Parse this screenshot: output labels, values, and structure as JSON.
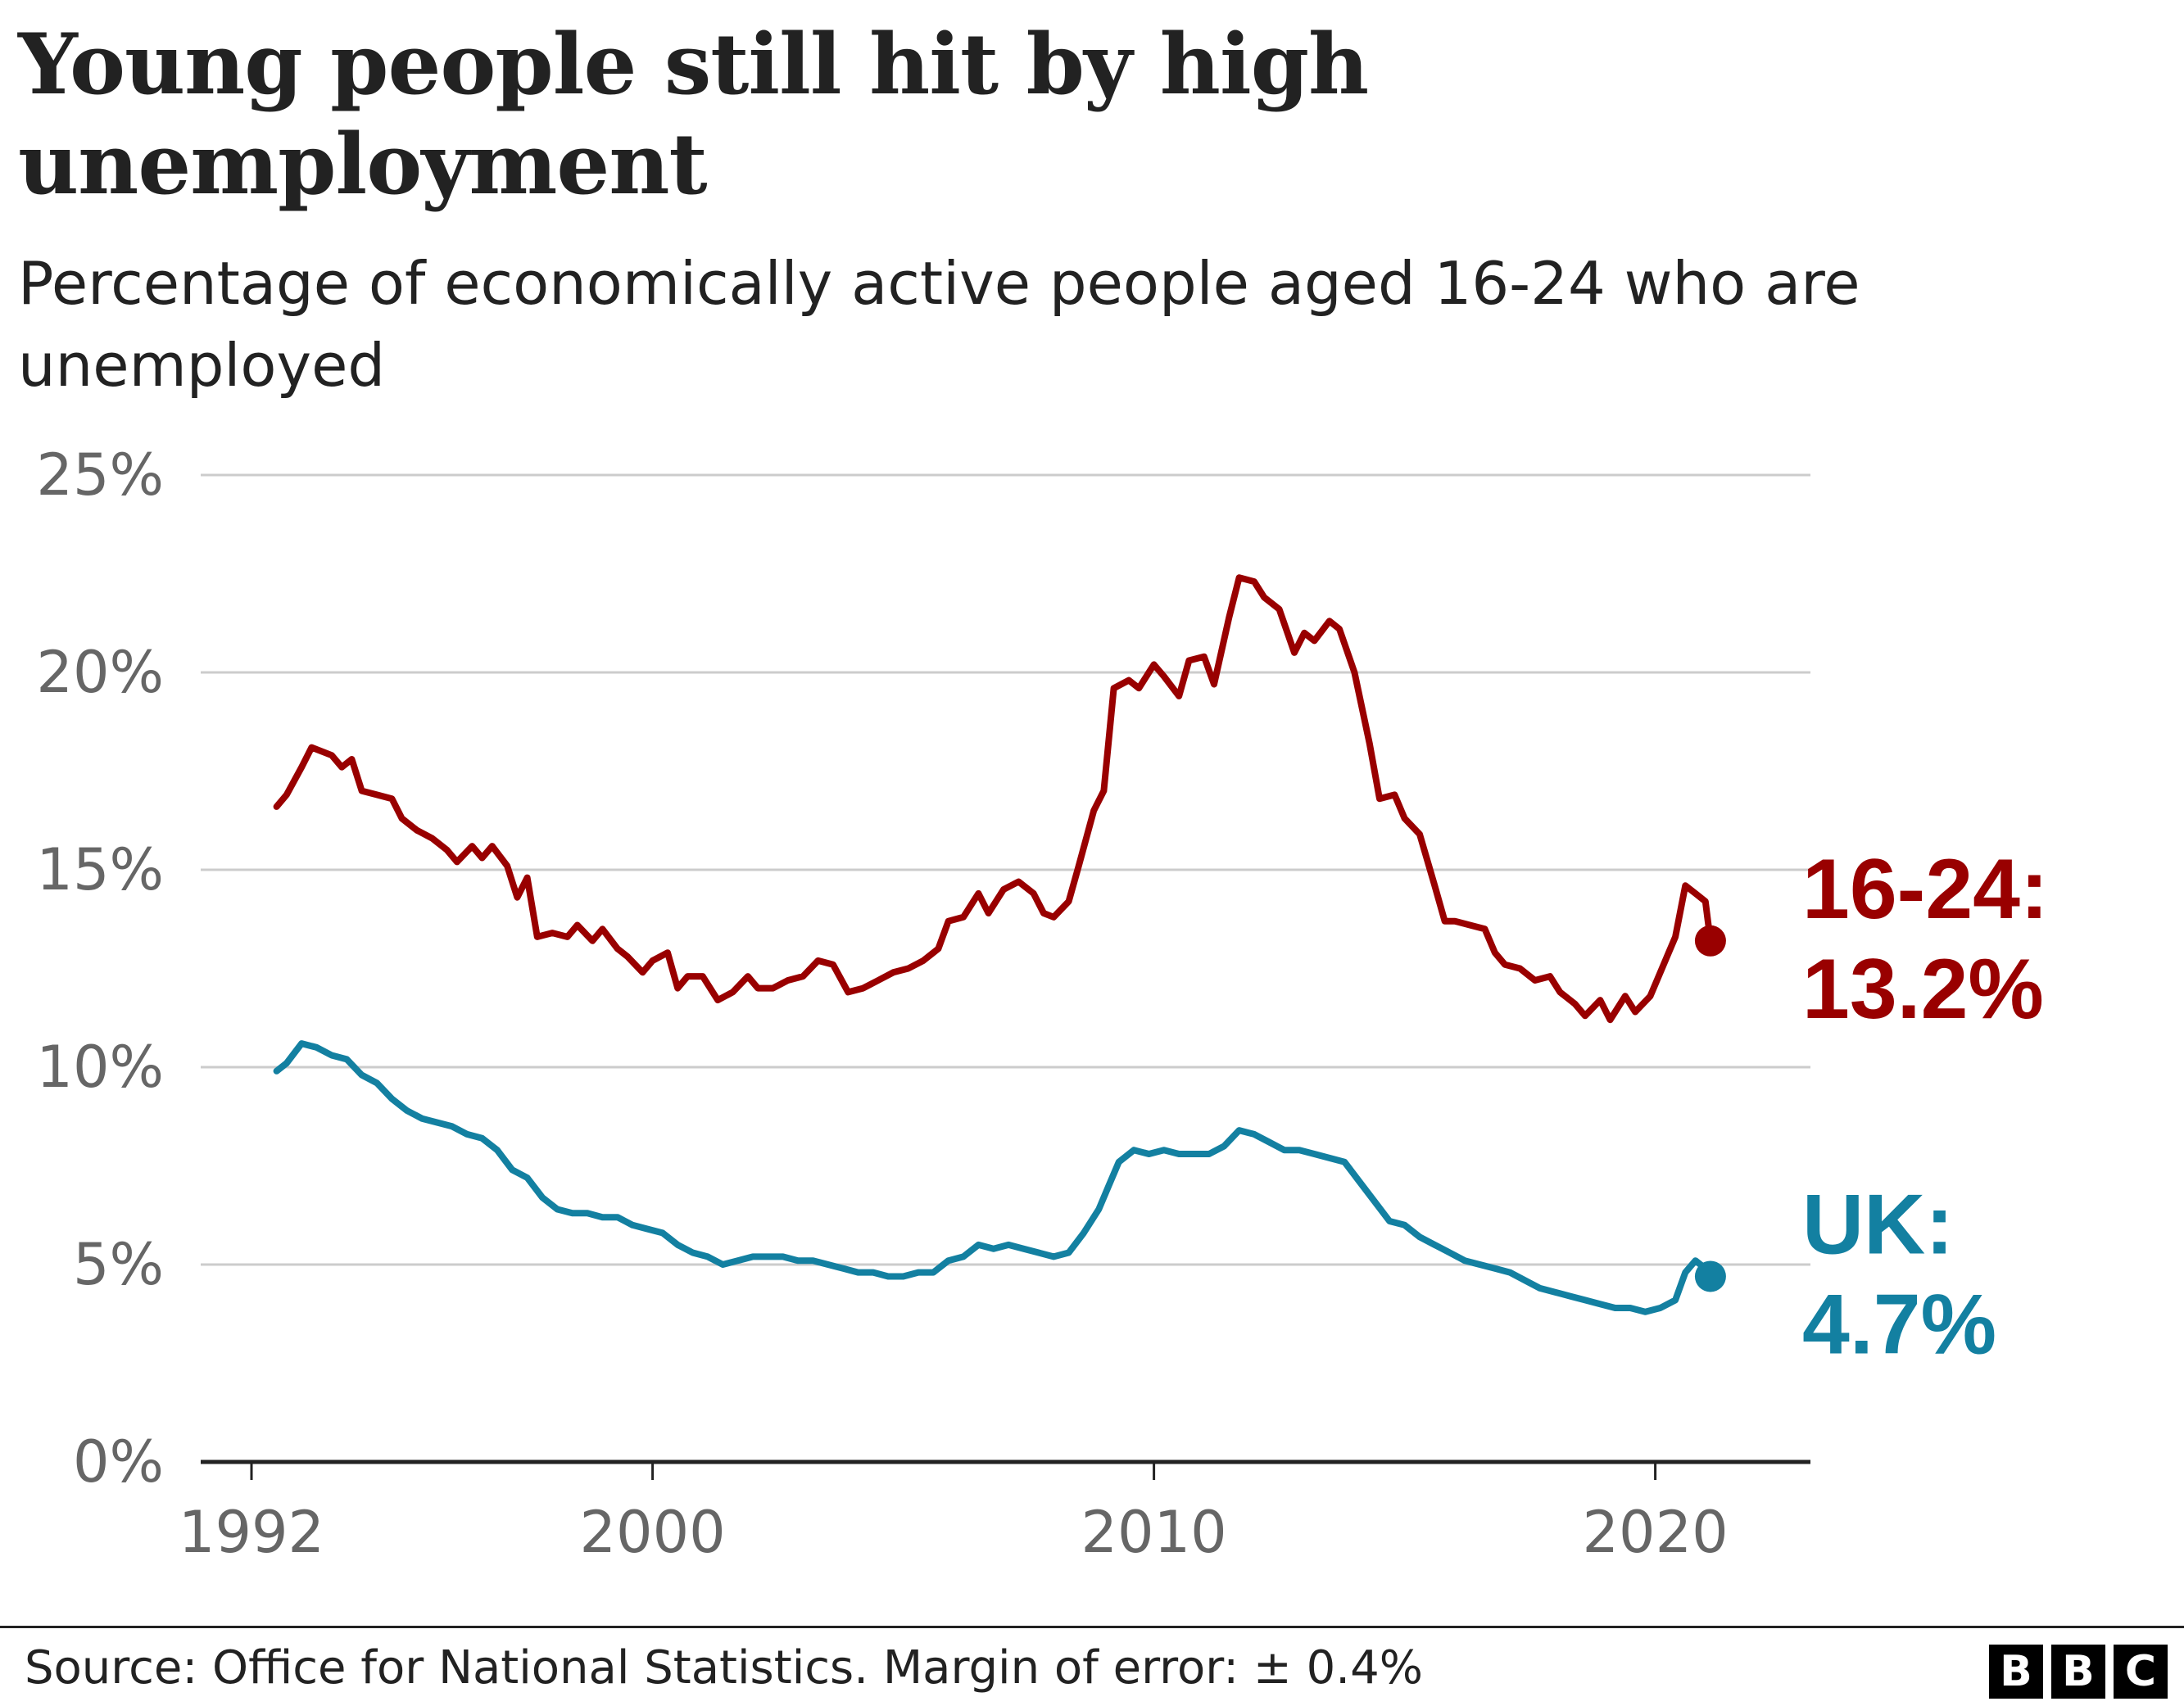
{
  "title": "Young people still hit by high unemployment",
  "subtitle": "Percentage of economically active people aged 16-24 who are unemployed",
  "source": "Source: Office for National Statistics. Margin of error: ± 0.4%",
  "logo": [
    "B",
    "B",
    "C"
  ],
  "chart_data": {
    "type": "line",
    "title": "Young people still hit by high unemployment",
    "subtitle": "Percentage of economically active people aged 16-24 who are unemployed",
    "xlabel": "",
    "ylabel": "",
    "xlim": [
      1991,
      2023
    ],
    "ylim": [
      0,
      25
    ],
    "x_ticks": [
      1992,
      2000,
      2010,
      2020
    ],
    "y_ticks": [
      0,
      5,
      10,
      15,
      20,
      25
    ],
    "y_tick_labels": [
      "0%",
      "5%",
      "10%",
      "15%",
      "20%",
      "25%"
    ],
    "grid": true,
    "colors": {
      "youth": "#990000",
      "uk": "#1380A1",
      "grid": "#cccccc",
      "axis": "#222222",
      "tick_text": "#666666"
    },
    "series": [
      {
        "name": "16-24",
        "key": "youth",
        "end_label": "16-24:",
        "end_value_label": "13.2%",
        "points": [
          [
            1992.5,
            16.6
          ],
          [
            1992.7,
            16.9
          ],
          [
            1993.0,
            17.6
          ],
          [
            1993.2,
            18.1
          ],
          [
            1993.6,
            17.9
          ],
          [
            1993.8,
            17.6
          ],
          [
            1994.0,
            17.8
          ],
          [
            1994.2,
            17.0
          ],
          [
            1994.5,
            16.9
          ],
          [
            1994.8,
            16.8
          ],
          [
            1995.0,
            16.3
          ],
          [
            1995.3,
            16.0
          ],
          [
            1995.6,
            15.8
          ],
          [
            1995.9,
            15.5
          ],
          [
            1996.1,
            15.2
          ],
          [
            1996.4,
            15.6
          ],
          [
            1996.6,
            15.3
          ],
          [
            1996.8,
            15.6
          ],
          [
            1997.1,
            15.1
          ],
          [
            1997.3,
            14.3
          ],
          [
            1997.5,
            14.8
          ],
          [
            1997.7,
            13.3
          ],
          [
            1998.0,
            13.4
          ],
          [
            1998.3,
            13.3
          ],
          [
            1998.5,
            13.6
          ],
          [
            1998.8,
            13.2
          ],
          [
            1999.0,
            13.5
          ],
          [
            1999.3,
            13.0
          ],
          [
            1999.5,
            12.8
          ],
          [
            1999.8,
            12.4
          ],
          [
            2000.0,
            12.7
          ],
          [
            2000.3,
            12.9
          ],
          [
            2000.5,
            12.0
          ],
          [
            2000.7,
            12.3
          ],
          [
            2001.0,
            12.3
          ],
          [
            2001.3,
            11.7
          ],
          [
            2001.6,
            11.9
          ],
          [
            2001.9,
            12.3
          ],
          [
            2002.1,
            12.0
          ],
          [
            2002.4,
            12.0
          ],
          [
            2002.7,
            12.2
          ],
          [
            2003.0,
            12.3
          ],
          [
            2003.3,
            12.7
          ],
          [
            2003.6,
            12.6
          ],
          [
            2003.9,
            11.9
          ],
          [
            2004.2,
            12.0
          ],
          [
            2004.5,
            12.2
          ],
          [
            2004.8,
            12.4
          ],
          [
            2005.1,
            12.5
          ],
          [
            2005.4,
            12.7
          ],
          [
            2005.7,
            13.0
          ],
          [
            2005.9,
            13.7
          ],
          [
            2006.2,
            13.8
          ],
          [
            2006.5,
            14.4
          ],
          [
            2006.7,
            13.9
          ],
          [
            2007.0,
            14.5
          ],
          [
            2007.3,
            14.7
          ],
          [
            2007.6,
            14.4
          ],
          [
            2007.8,
            13.9
          ],
          [
            2008.0,
            13.8
          ],
          [
            2008.3,
            14.2
          ],
          [
            2008.5,
            15.1
          ],
          [
            2008.8,
            16.5
          ],
          [
            2009.0,
            17.0
          ],
          [
            2009.2,
            19.6
          ],
          [
            2009.5,
            19.8
          ],
          [
            2009.7,
            19.6
          ],
          [
            2010.0,
            20.2
          ],
          [
            2010.2,
            19.9
          ],
          [
            2010.5,
            19.4
          ],
          [
            2010.7,
            20.3
          ],
          [
            2011.0,
            20.4
          ],
          [
            2011.2,
            19.7
          ],
          [
            2011.5,
            21.4
          ],
          [
            2011.7,
            22.4
          ],
          [
            2012.0,
            22.3
          ],
          [
            2012.2,
            21.9
          ],
          [
            2012.5,
            21.6
          ],
          [
            2012.8,
            20.5
          ],
          [
            2013.0,
            21.0
          ],
          [
            2013.2,
            20.8
          ],
          [
            2013.5,
            21.3
          ],
          [
            2013.7,
            21.1
          ],
          [
            2014.0,
            20.0
          ],
          [
            2014.3,
            18.2
          ],
          [
            2014.5,
            16.8
          ],
          [
            2014.8,
            16.9
          ],
          [
            2015.0,
            16.3
          ],
          [
            2015.3,
            15.9
          ],
          [
            2015.6,
            14.6
          ],
          [
            2015.8,
            13.7
          ],
          [
            2016.0,
            13.7
          ],
          [
            2016.3,
            13.6
          ],
          [
            2016.6,
            13.5
          ],
          [
            2016.8,
            12.9
          ],
          [
            2017.0,
            12.6
          ],
          [
            2017.3,
            12.5
          ],
          [
            2017.6,
            12.2
          ],
          [
            2017.9,
            12.3
          ],
          [
            2018.1,
            11.9
          ],
          [
            2018.4,
            11.6
          ],
          [
            2018.6,
            11.3
          ],
          [
            2018.9,
            11.7
          ],
          [
            2019.1,
            11.2
          ],
          [
            2019.4,
            11.8
          ],
          [
            2019.6,
            11.4
          ],
          [
            2019.9,
            11.8
          ],
          [
            2020.2,
            12.7
          ],
          [
            2020.4,
            13.3
          ],
          [
            2020.6,
            14.6
          ],
          [
            2020.8,
            14.4
          ],
          [
            2021.0,
            14.2
          ],
          [
            2021.1,
            13.2
          ]
        ]
      },
      {
        "name": "UK",
        "key": "uk",
        "end_label": "UK:",
        "end_value_label": "4.7%",
        "points": [
          [
            1992.5,
            9.9
          ],
          [
            1992.7,
            10.1
          ],
          [
            1993.0,
            10.6
          ],
          [
            1993.3,
            10.5
          ],
          [
            1993.6,
            10.3
          ],
          [
            1993.9,
            10.2
          ],
          [
            1994.2,
            9.8
          ],
          [
            1994.5,
            9.6
          ],
          [
            1994.8,
            9.2
          ],
          [
            1995.1,
            8.9
          ],
          [
            1995.4,
            8.7
          ],
          [
            1995.7,
            8.6
          ],
          [
            1996.0,
            8.5
          ],
          [
            1996.3,
            8.3
          ],
          [
            1996.6,
            8.2
          ],
          [
            1996.9,
            7.9
          ],
          [
            1997.2,
            7.4
          ],
          [
            1997.5,
            7.2
          ],
          [
            1997.8,
            6.7
          ],
          [
            1998.1,
            6.4
          ],
          [
            1998.4,
            6.3
          ],
          [
            1998.7,
            6.3
          ],
          [
            1999.0,
            6.2
          ],
          [
            1999.3,
            6.2
          ],
          [
            1999.6,
            6.0
          ],
          [
            1999.9,
            5.9
          ],
          [
            2000.2,
            5.8
          ],
          [
            2000.5,
            5.5
          ],
          [
            2000.8,
            5.3
          ],
          [
            2001.1,
            5.2
          ],
          [
            2001.4,
            5.0
          ],
          [
            2001.7,
            5.1
          ],
          [
            2002.0,
            5.2
          ],
          [
            2002.3,
            5.2
          ],
          [
            2002.6,
            5.2
          ],
          [
            2002.9,
            5.1
          ],
          [
            2003.2,
            5.1
          ],
          [
            2003.5,
            5.0
          ],
          [
            2003.8,
            4.9
          ],
          [
            2004.1,
            4.8
          ],
          [
            2004.4,
            4.8
          ],
          [
            2004.7,
            4.7
          ],
          [
            2005.0,
            4.7
          ],
          [
            2005.3,
            4.8
          ],
          [
            2005.6,
            4.8
          ],
          [
            2005.9,
            5.1
          ],
          [
            2006.2,
            5.2
          ],
          [
            2006.5,
            5.5
          ],
          [
            2006.8,
            5.4
          ],
          [
            2007.1,
            5.5
          ],
          [
            2007.4,
            5.4
          ],
          [
            2007.7,
            5.3
          ],
          [
            2008.0,
            5.2
          ],
          [
            2008.3,
            5.3
          ],
          [
            2008.6,
            5.8
          ],
          [
            2008.9,
            6.4
          ],
          [
            2009.1,
            7.0
          ],
          [
            2009.3,
            7.6
          ],
          [
            2009.6,
            7.9
          ],
          [
            2009.9,
            7.8
          ],
          [
            2010.2,
            7.9
          ],
          [
            2010.5,
            7.8
          ],
          [
            2010.8,
            7.8
          ],
          [
            2011.1,
            7.8
          ],
          [
            2011.4,
            8.0
          ],
          [
            2011.7,
            8.4
          ],
          [
            2012.0,
            8.3
          ],
          [
            2012.3,
            8.1
          ],
          [
            2012.6,
            7.9
          ],
          [
            2012.9,
            7.9
          ],
          [
            2013.2,
            7.8
          ],
          [
            2013.5,
            7.7
          ],
          [
            2013.8,
            7.6
          ],
          [
            2014.1,
            7.1
          ],
          [
            2014.4,
            6.6
          ],
          [
            2014.7,
            6.1
          ],
          [
            2015.0,
            6.0
          ],
          [
            2015.3,
            5.7
          ],
          [
            2015.6,
            5.5
          ],
          [
            2015.9,
            5.3
          ],
          [
            2016.2,
            5.1
          ],
          [
            2016.5,
            5.0
          ],
          [
            2016.8,
            4.9
          ],
          [
            2017.1,
            4.8
          ],
          [
            2017.4,
            4.6
          ],
          [
            2017.7,
            4.4
          ],
          [
            2018.0,
            4.3
          ],
          [
            2018.3,
            4.2
          ],
          [
            2018.6,
            4.1
          ],
          [
            2018.9,
            4.0
          ],
          [
            2019.2,
            3.9
          ],
          [
            2019.5,
            3.9
          ],
          [
            2019.8,
            3.8
          ],
          [
            2020.1,
            3.9
          ],
          [
            2020.4,
            4.1
          ],
          [
            2020.6,
            4.8
          ],
          [
            2020.8,
            5.1
          ],
          [
            2021.0,
            4.9
          ],
          [
            2021.1,
            4.7
          ]
        ]
      }
    ]
  }
}
